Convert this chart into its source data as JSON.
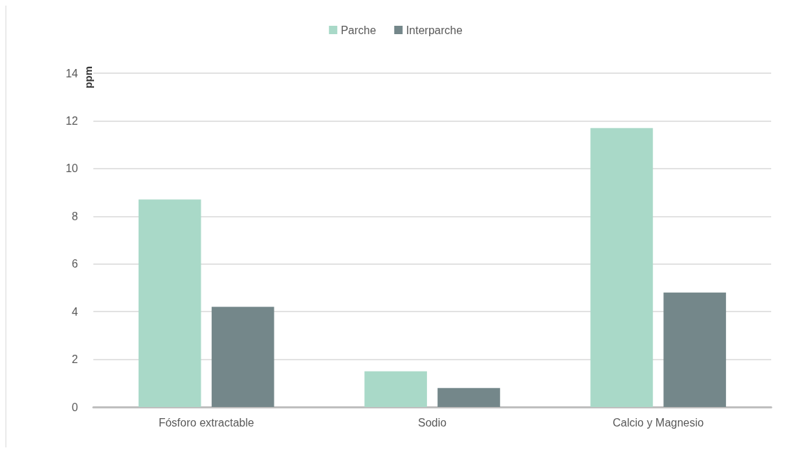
{
  "chart_data": {
    "type": "bar",
    "ylabel": "ppm",
    "categories": [
      "Fósforo extractable",
      "Sodio",
      "Calcio y Magnesio"
    ],
    "series": [
      {
        "name": "Parche",
        "color": "#a9d9c8",
        "values": [
          8.7,
          1.5,
          11.7
        ]
      },
      {
        "name": "Interparche",
        "color": "#74878a",
        "values": [
          4.2,
          0.8,
          4.8
        ]
      }
    ],
    "ylim": [
      0,
      14
    ],
    "yticks": [
      0,
      2,
      4,
      6,
      8,
      10,
      12,
      14
    ],
    "grid": "y",
    "legend": "top"
  }
}
